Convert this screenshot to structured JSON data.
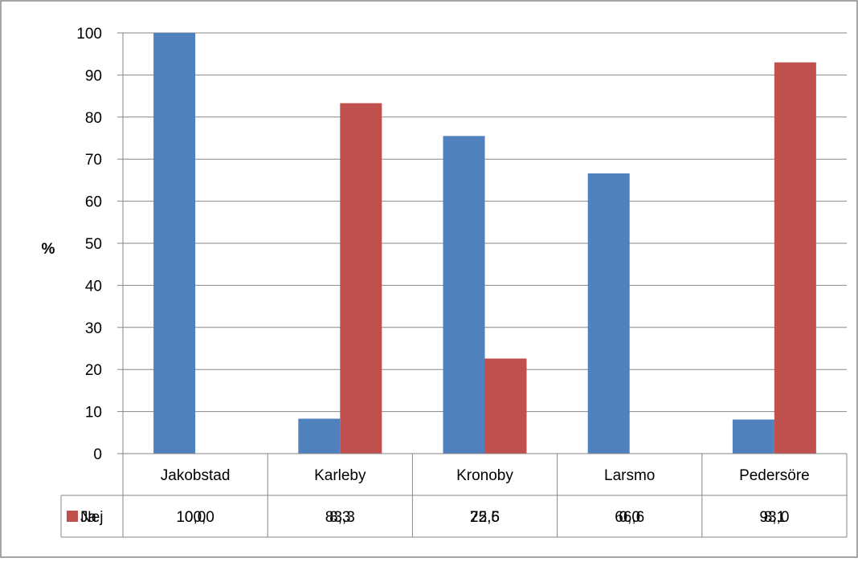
{
  "chart_data": {
    "type": "bar",
    "ylabel": "%",
    "ylim": [
      0,
      100
    ],
    "yticks": [
      0,
      10,
      20,
      30,
      40,
      50,
      60,
      70,
      80,
      90,
      100
    ],
    "categories": [
      "Jakobstad",
      "Karleby",
      "Kronoby",
      "Larsmo",
      "Pedersöre"
    ],
    "series": [
      {
        "name": "Ja",
        "color": "#4f81bd",
        "values": [
          100.0,
          8.3,
          75.5,
          66.6,
          8.1
        ],
        "labels": [
          "100,0",
          "8,3",
          "75,5",
          "66,6",
          "8,1"
        ]
      },
      {
        "name": "Nej",
        "color": "#c0504d",
        "values": [
          0.0,
          83.3,
          22.6,
          0.0,
          93.0
        ],
        "labels": [
          "0,0",
          "83,3",
          "22,6",
          "0,0",
          "93,0"
        ]
      }
    ],
    "grid": true,
    "legend": "data-table"
  }
}
